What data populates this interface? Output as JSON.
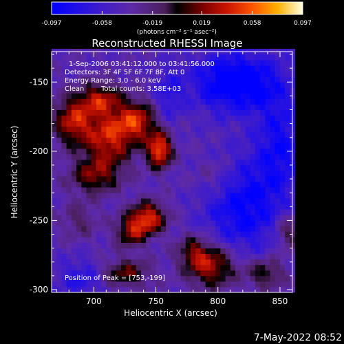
{
  "chart_data": {
    "type": "heatmap",
    "title": "Reconstructed RHESSI Image",
    "xlabel": "Heliocentric X (arcsec)",
    "ylabel": "Heliocentric Y (arcsec)",
    "xlim": [
      666,
      860
    ],
    "ylim": [
      -302,
      -128
    ],
    "x_ticks": [
      700,
      750,
      800,
      850
    ],
    "y_ticks": [
      -150,
      -200,
      -250,
      -300
    ],
    "grid": false,
    "colorbar": {
      "min": -0.097,
      "max": 0.097,
      "ticks": [
        "-0.097",
        "-0.058",
        "-0.019",
        "0.019",
        "0.058",
        "0.097"
      ],
      "unit_label": "(photons cm⁻² s⁻¹ asec⁻²)"
    },
    "annotations": {
      "time_range": "1-Sep-2006 03:41:12.000 to 03:41:56.000",
      "detectors": "Detectors: 3F 4F 5F 6F 7F 8F, Att 0",
      "energy_range": "Energy Range: 3.0 - 6.0 keV",
      "method": "Clean",
      "total_counts": "Total counts: 3.58E+03",
      "peak": "Position of Peak = [753,-199]"
    },
    "peak_position": [
      753,
      -199
    ],
    "sources": [
      {
        "x": 753,
        "y": -199,
        "amp": 1.0,
        "sx": 7,
        "sy": 9
      },
      {
        "x": 712,
        "y": -190,
        "amp": 0.8,
        "sx": 14,
        "sy": 15
      },
      {
        "x": 735,
        "y": -178,
        "amp": 0.75,
        "sx": 11,
        "sy": 10
      },
      {
        "x": 683,
        "y": -178,
        "amp": 0.75,
        "sx": 11,
        "sy": 12
      },
      {
        "x": 705,
        "y": -162,
        "amp": 0.65,
        "sx": 12,
        "sy": 8
      },
      {
        "x": 700,
        "y": -218,
        "amp": 0.55,
        "sx": 14,
        "sy": 9
      },
      {
        "x": 744,
        "y": -248,
        "amp": 0.85,
        "sx": 10,
        "sy": 8
      },
      {
        "x": 730,
        "y": -258,
        "amp": 0.6,
        "sx": 9,
        "sy": 8
      },
      {
        "x": 725,
        "y": -288,
        "amp": 0.55,
        "sx": 14,
        "sy": 7
      },
      {
        "x": 795,
        "y": -283,
        "amp": 0.75,
        "sx": 14,
        "sy": 11
      },
      {
        "x": 780,
        "y": -272,
        "amp": 0.45,
        "sx": 9,
        "sy": 8
      },
      {
        "x": 838,
        "y": -288,
        "amp": 0.5,
        "sx": 11,
        "sy": 8
      },
      {
        "x": 858,
        "y": -258,
        "amp": 0.45,
        "sx": 8,
        "sy": 9
      },
      {
        "x": 798,
        "y": -218,
        "amp": 0.22,
        "sx": 12,
        "sy": 10
      },
      {
        "x": 688,
        "y": -250,
        "amp": 0.28,
        "sx": 10,
        "sy": 9
      },
      {
        "x": 815,
        "y": -150,
        "amp": -0.75,
        "sx": 25,
        "sy": 15
      },
      {
        "x": 820,
        "y": -240,
        "amp": -0.55,
        "sx": 22,
        "sy": 25
      },
      {
        "x": 850,
        "y": -195,
        "amp": -0.45,
        "sx": 14,
        "sy": 26
      },
      {
        "x": 690,
        "y": -292,
        "amp": -0.35,
        "sx": 14,
        "sy": 10
      },
      {
        "x": 760,
        "y": -160,
        "amp": -0.3,
        "sx": 8,
        "sy": 14
      }
    ]
  },
  "footer": {
    "timestamp": "7-May-2022 08:52"
  }
}
